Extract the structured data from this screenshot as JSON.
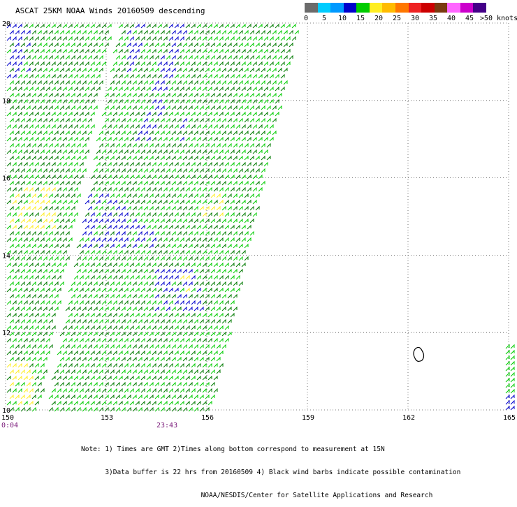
{
  "title": "ASCAT 25KM NOAA Winds 20160509 descending",
  "legend": {
    "colors": [
      "#6b6b6b",
      "#00ccff",
      "#0099ff",
      "#0000cc",
      "#00cc00",
      "#ffee22",
      "#ffbb00",
      "#ff7700",
      "#ee2222",
      "#cc0000",
      "#7a3a10",
      "#ff66ff",
      "#cc00cc",
      "#440088"
    ],
    "ticks": [
      "0",
      "5",
      "10",
      "15",
      "20",
      "25",
      "30",
      "35",
      "40",
      "45",
      ">50 knots"
    ],
    "unit": "knots"
  },
  "map": {
    "lat_labels": [
      "20",
      "18",
      "16",
      "14",
      "12",
      "10"
    ],
    "lon_labels": [
      "150",
      "153",
      "156",
      "159",
      "162",
      "165"
    ],
    "lat_range": [
      10,
      20
    ],
    "lon_range": [
      150,
      165
    ],
    "time_labels": [
      "0:04",
      "23:43"
    ]
  },
  "notes": [
    "Note: 1) Times are GMT 2)Times along bottom correspond to measurement at 15N",
    "      3)Data buffer is 22 hrs from 20160509 4) Black wind barbs indicate possible contamination",
    "                              NOAA/NESDIS/Center for Satellite Applications and Research"
  ]
}
